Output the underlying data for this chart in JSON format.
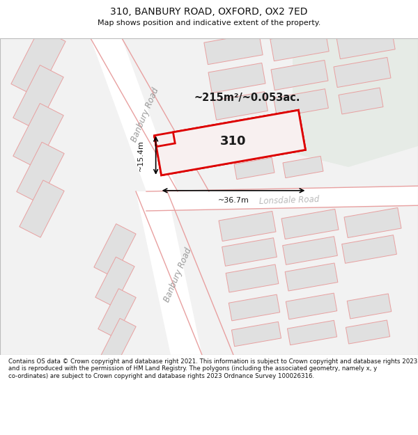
{
  "title": "310, BANBURY ROAD, OXFORD, OX2 7ED",
  "subtitle": "Map shows position and indicative extent of the property.",
  "footer": "Contains OS data © Crown copyright and database right 2021. This information is subject to Crown copyright and database rights 2023 and is reproduced with the permission of HM Land Registry. The polygons (including the associated geometry, namely x, y co-ordinates) are subject to Crown copyright and database rights 2023 Ordnance Survey 100026316.",
  "bg_color": "#f2f2f2",
  "green_color": "#e6ebe6",
  "road_color": "#ffffff",
  "road_line_color": "#e8a0a0",
  "building_fill": "#e0e0e0",
  "building_edge": "#e8a0a0",
  "highlight_color": "#dd0000",
  "prop_fill": "#f8f0f0",
  "area_text": "~215m²/~0.053ac.",
  "width_text": "~36.7m",
  "height_text": "~15.4m",
  "label_text": "310",
  "road_label_upper": "Banbury Road",
  "road_label_lower": "Banbury Road",
  "road_label_lonsdale": "Lonsdale Road"
}
